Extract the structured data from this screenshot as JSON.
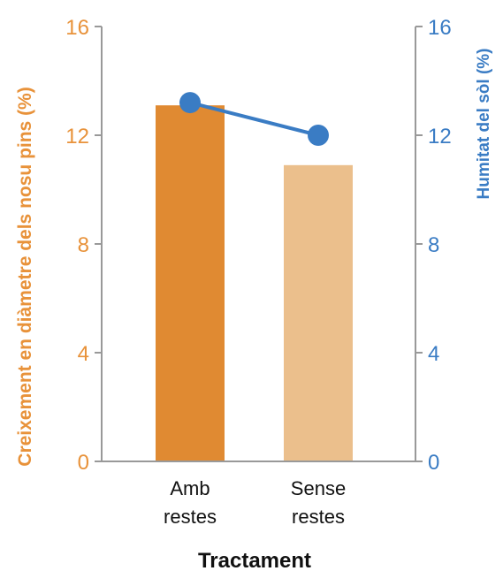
{
  "chart_data": {
    "type": "bar",
    "xlabel": "Tractament",
    "categories": [
      [
        "Amb",
        "restes"
      ],
      [
        "Sense",
        "restes"
      ]
    ],
    "left_axis": {
      "label": "Creixement en diàmetre dels nosu pins (%)",
      "ylim": [
        0,
        16
      ],
      "ticks": [
        "0",
        "4",
        "8",
        "12",
        "16"
      ],
      "color": "#E8923A"
    },
    "right_axis": {
      "label": "Humitat del sòl (%)",
      "ylim": [
        0,
        16
      ],
      "ticks": [
        "0",
        "4",
        "8",
        "12",
        "16"
      ],
      "color": "#3A7CC4"
    },
    "bars": {
      "values": [
        13.1,
        10.9
      ],
      "colors": [
        "#E08A32",
        "#EBBF8C"
      ]
    },
    "line": {
      "values": [
        13.2,
        12.0
      ],
      "color": "#3A7CC4"
    },
    "grid": false
  }
}
